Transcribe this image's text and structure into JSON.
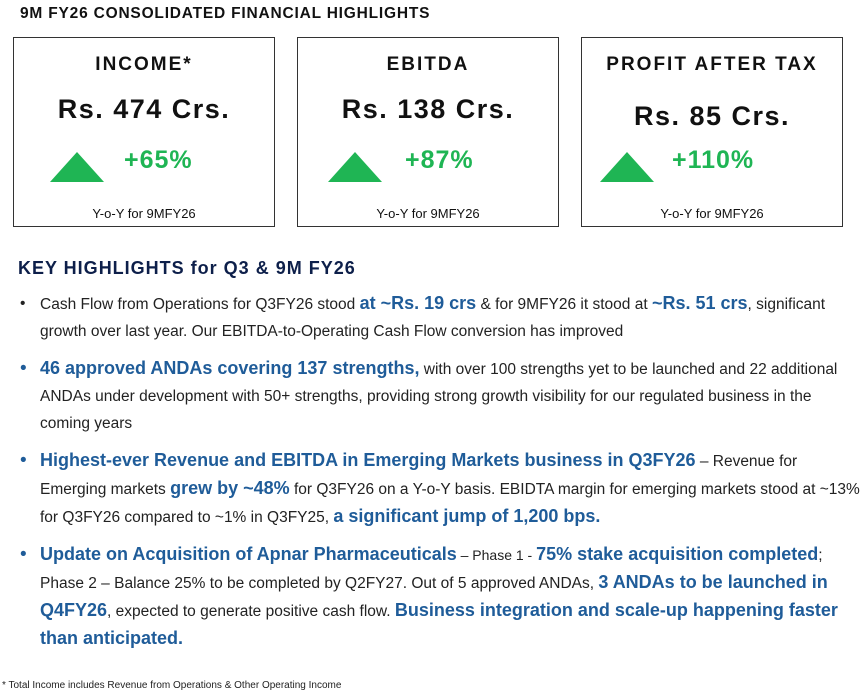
{
  "header": {
    "title": "9M FY26 CONSOLIDATED FINANCIAL HIGHLIGHTS"
  },
  "cards": [
    {
      "label": "INCOME*",
      "value": "Rs. 474 Crs.",
      "change": "+65%",
      "note": "Y-o-Y for 9MFY26"
    },
    {
      "label": "EBITDA",
      "value": "Rs. 138 Crs.",
      "change": "+87%",
      "note": "Y-o-Y for 9MFY26"
    },
    {
      "label": "PROFIT AFTER TAX",
      "value": "Rs. 85 Crs.",
      "change": "+110%",
      "note": "Y-o-Y for 9MFY26"
    }
  ],
  "highlights": {
    "title": "KEY HIGHLIGHTS for Q3 & 9M FY26",
    "bullets": [
      [
        "Cash Flow from Operations for Q3FY26 stood ",
        "at ~Rs. 19 crs",
        " & for 9MFY26 it stood at ",
        "~Rs. 51 crs",
        ", significant growth over last year. Our EBITDA-to-Operating Cash Flow conversion has improved"
      ],
      [
        "46 approved ANDAs covering 137 strengths,",
        " with over 100 strengths yet to be launched and 22 additional ANDAs under development with 50+ strengths, providing strong growth visibility for our regulated business in the coming years"
      ],
      [
        "Highest-ever Revenue and EBITDA in Emerging Markets business in Q3FY26",
        " – Revenue for Emerging markets ",
        "grew by ~48%",
        " for Q3FY26 on a Y-o-Y basis. EBIDTA margin for emerging markets stood at ~13% for Q3FY26 compared to ~1% in Q3FY25, ",
        "a significant jump of 1,200 bps."
      ],
      [
        "Update on Acquisition of Apnar Pharmaceuticals",
        " – Phase 1 - ",
        "75% stake acquisition completed",
        "; Phase 2 – Balance 25% to be completed by Q2FY27. Out of 5 approved ANDAs, ",
        "3 ANDAs to be launched in Q4FY26",
        ", expected to generate positive cash flow. ",
        "Business integration and scale-up happening faster than anticipated."
      ]
    ]
  },
  "footnote": "* Total Income includes Revenue from Operations & Other Operating Income"
}
